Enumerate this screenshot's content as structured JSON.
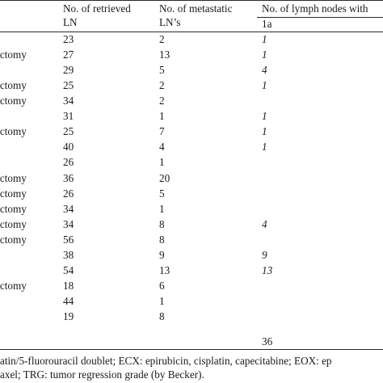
{
  "header": {
    "col_retrieved_line1": "No. of retrieved",
    "col_retrieved_line2": "LN",
    "col_metastatic_line1": "No. of metastatic",
    "col_metastatic_line2": "LN’s",
    "col_stations": "No. of lymph nodes with",
    "sub_col_1a": "1a"
  },
  "rows": [
    {
      "surgery": "",
      "retrieved": "23",
      "metastatic": "2",
      "station_1a": "1"
    },
    {
      "surgery": "ectomy",
      "retrieved": "27",
      "metastatic": "13",
      "station_1a": "1"
    },
    {
      "surgery": "",
      "retrieved": "29",
      "metastatic": "5",
      "station_1a": "4"
    },
    {
      "surgery": "ectomy",
      "retrieved": "25",
      "metastatic": "2",
      "station_1a": "1"
    },
    {
      "surgery": "ectomy",
      "retrieved": "34",
      "metastatic": "2",
      "station_1a": ""
    },
    {
      "surgery": "",
      "retrieved": "31",
      "metastatic": "1",
      "station_1a": "1"
    },
    {
      "surgery": "ectomy",
      "retrieved": "25",
      "metastatic": "7",
      "station_1a": "1"
    },
    {
      "surgery": "",
      "retrieved": "40",
      "metastatic": "4",
      "station_1a": "1"
    },
    {
      "surgery": "",
      "retrieved": "26",
      "metastatic": "1",
      "station_1a": ""
    },
    {
      "surgery": "ectomy",
      "retrieved": "36",
      "metastatic": "20",
      "station_1a": ""
    },
    {
      "surgery": "ectomy",
      "retrieved": "26",
      "metastatic": "5",
      "station_1a": ""
    },
    {
      "surgery": "ectomy",
      "retrieved": "34",
      "metastatic": "1",
      "station_1a": ""
    },
    {
      "surgery": "ectomy",
      "retrieved": "34",
      "metastatic": "8",
      "station_1a": "4"
    },
    {
      "surgery": "ectomy",
      "retrieved": "56",
      "metastatic": "8",
      "station_1a": ""
    },
    {
      "surgery": "",
      "retrieved": "38",
      "metastatic": "9",
      "station_1a": "9"
    },
    {
      "surgery": "",
      "retrieved": "54",
      "metastatic": "13",
      "station_1a": "13"
    },
    {
      "surgery": "ectomy",
      "retrieved": "18",
      "metastatic": "6",
      "station_1a": ""
    },
    {
      "surgery": "",
      "retrieved": "44",
      "metastatic": "1",
      "station_1a": ""
    },
    {
      "surgery": "",
      "retrieved": "19",
      "metastatic": "8",
      "station_1a": ""
    }
  ],
  "total": {
    "station_1a": "36"
  },
  "footnote": {
    "line1": "atin/5-fluorouracil doublet; ECX: epirubicin, cisplatin, capecitabine; EOX: ep",
    "line2": "axel; TRG: tumor regression grade (by Becker)."
  }
}
